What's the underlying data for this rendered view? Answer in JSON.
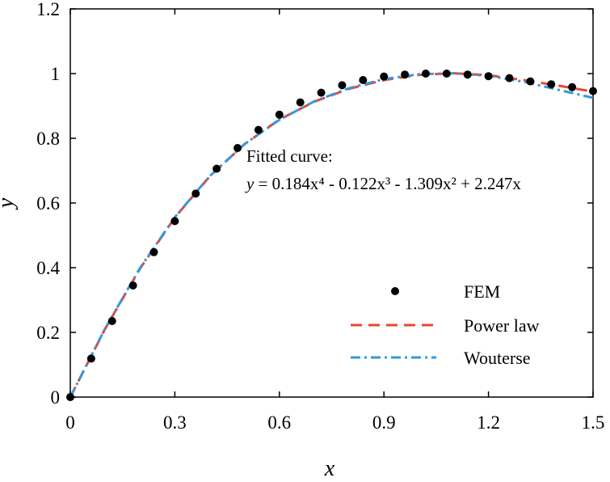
{
  "chart_data": {
    "type": "line",
    "title": "",
    "xlabel": "x",
    "ylabel": "y",
    "xlim": [
      0,
      1.5
    ],
    "ylim": [
      0,
      1.2
    ],
    "xticks": [
      0,
      0.3,
      0.6,
      0.9,
      1.2,
      1.5
    ],
    "xtick_labels": [
      "0",
      "0.3",
      "0.6",
      "0.9",
      "1.2",
      "1.5"
    ],
    "yticks": [
      0,
      0.2,
      0.4,
      0.6,
      0.8,
      1.0,
      1.2
    ],
    "ytick_labels": [
      "0",
      "0.2",
      "0.4",
      "0.6",
      "0.8",
      "1",
      "1.2"
    ],
    "grid": false,
    "legend_position": "bottom-right",
    "annotation": {
      "line1": "Fitted curve:",
      "eq_y": "y",
      "eq_rest": " = 0.184x⁴ - 0.122x³ - 1.309x² + 2.247x"
    },
    "series": [
      {
        "name": "FEM",
        "style": "markers",
        "color": "#000000",
        "x": [
          0,
          0.06,
          0.12,
          0.18,
          0.24,
          0.3,
          0.36,
          0.42,
          0.48,
          0.54,
          0.6,
          0.66,
          0.72,
          0.78,
          0.84,
          0.9,
          0.96,
          1.02,
          1.08,
          1.14,
          1.2,
          1.26,
          1.32,
          1.38,
          1.44,
          1.5
        ],
        "y": [
          0,
          0.119,
          0.235,
          0.345,
          0.448,
          0.544,
          0.629,
          0.706,
          0.77,
          0.826,
          0.873,
          0.911,
          0.941,
          0.964,
          0.98,
          0.991,
          0.997,
          1.0,
          1.0,
          0.997,
          0.992,
          0.986,
          0.976,
          0.967,
          0.958,
          0.946
        ]
      },
      {
        "name": "Power law",
        "style": "dashed",
        "color": "#ee4433",
        "x": [
          0,
          0.1,
          0.2,
          0.3,
          0.4,
          0.5,
          0.6,
          0.7,
          0.8,
          0.9,
          1.0,
          1.1,
          1.2,
          1.3,
          1.4,
          1.5
        ],
        "y": [
          0,
          0.211,
          0.397,
          0.555,
          0.682,
          0.782,
          0.858,
          0.913,
          0.953,
          0.98,
          0.996,
          1.001,
          0.995,
          0.98,
          0.963,
          0.944
        ]
      },
      {
        "name": "Wouterse",
        "style": "dashdot",
        "color": "#3399dd",
        "x": [
          0,
          0.1,
          0.2,
          0.3,
          0.4,
          0.5,
          0.6,
          0.7,
          0.8,
          0.9,
          1.0,
          1.1,
          1.2,
          1.3,
          1.4,
          1.5
        ],
        "y": [
          0,
          0.212,
          0.399,
          0.556,
          0.683,
          0.782,
          0.857,
          0.914,
          0.955,
          0.983,
          0.998,
          1.001,
          0.993,
          0.975,
          0.95,
          0.925
        ]
      }
    ]
  }
}
